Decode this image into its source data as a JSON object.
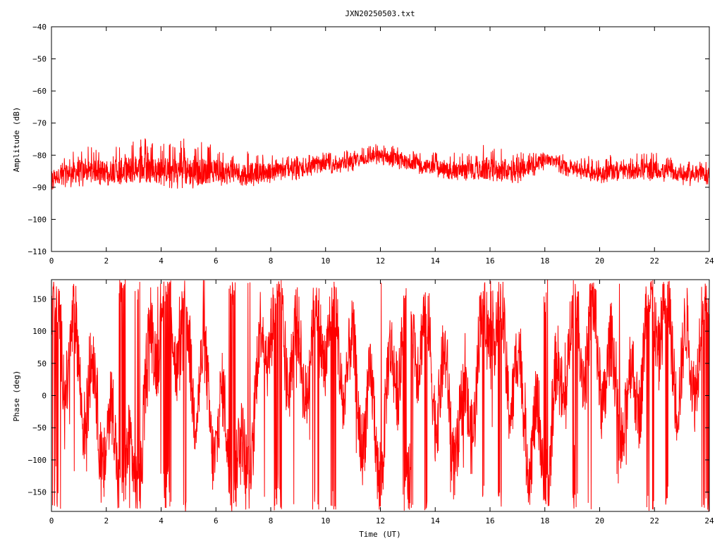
{
  "title": "JXN20250503.txt",
  "series_color": "#ff0000",
  "chart_data": [
    {
      "type": "line",
      "ylabel": "Amplitude (dB)",
      "xlabel": "",
      "xlim": [
        0,
        24
      ],
      "ylim": [
        -110,
        -40
      ],
      "xticks": [
        "0",
        "2",
        "4",
        "6",
        "8",
        "10",
        "12",
        "14",
        "16",
        "18",
        "20",
        "22",
        "24"
      ],
      "yticks": [
        "-40",
        "-50",
        "-60",
        "-70",
        "-80",
        "-90",
        "-100",
        "-110"
      ],
      "grid": false,
      "series": [
        {
          "x": [
            0,
            1,
            2,
            3,
            4,
            5,
            6,
            7,
            8,
            9,
            10,
            11,
            12,
            13,
            14,
            15,
            16,
            17,
            18,
            19,
            20,
            21,
            22,
            23,
            24
          ],
          "mean": [
            -87,
            -85,
            -85,
            -84.5,
            -84.5,
            -85,
            -85,
            -85.5,
            -85,
            -84,
            -83,
            -82,
            -80,
            -82,
            -84,
            -85,
            -84.5,
            -85,
            -81,
            -84,
            -85.5,
            -85,
            -84.5,
            -86,
            -86
          ],
          "upper": [
            -84,
            -77,
            -78,
            -73,
            -76,
            -74,
            -77,
            -78,
            -80,
            -80,
            -79,
            -78,
            -76,
            -78,
            -79,
            -79,
            -76,
            -79,
            -79,
            -80,
            -80,
            -79,
            -79,
            -82,
            -82
          ],
          "lower": [
            -91,
            -90,
            -90,
            -89,
            -90,
            -91,
            -90,
            -90,
            -89,
            -88,
            -86,
            -85,
            -83,
            -85,
            -87,
            -88,
            -88,
            -89,
            -85,
            -87,
            -89,
            -88,
            -88,
            -90,
            -90
          ]
        }
      ]
    },
    {
      "type": "line",
      "ylabel": "Phase (deg)",
      "xlabel": "Time (UT)",
      "xlim": [
        0,
        24
      ],
      "ylim": [
        -180,
        180
      ],
      "xticks": [
        "0",
        "2",
        "4",
        "6",
        "8",
        "10",
        "12",
        "14",
        "16",
        "18",
        "20",
        "22",
        "24"
      ],
      "yticks": [
        "150",
        "100",
        "50",
        "0",
        "-50",
        "-100",
        "-150"
      ],
      "ytick_values": [
        150,
        100,
        50,
        0,
        -50,
        -100,
        -150
      ],
      "grid": false,
      "series": [
        {
          "x": [
            0,
            1,
            2,
            3,
            4,
            5,
            6,
            7,
            8,
            9,
            10,
            11,
            12,
            13,
            14,
            15,
            16,
            17,
            18,
            19,
            20,
            21,
            22,
            23,
            24
          ],
          "trend": [
            120,
            40,
            -60,
            -150,
            170,
            60,
            -40,
            -130,
            150,
            40,
            120,
            20,
            -80,
            160,
            30,
            -70,
            140,
            10,
            -120,
            120,
            60,
            -40,
            150,
            30,
            120
          ]
        }
      ]
    }
  ]
}
